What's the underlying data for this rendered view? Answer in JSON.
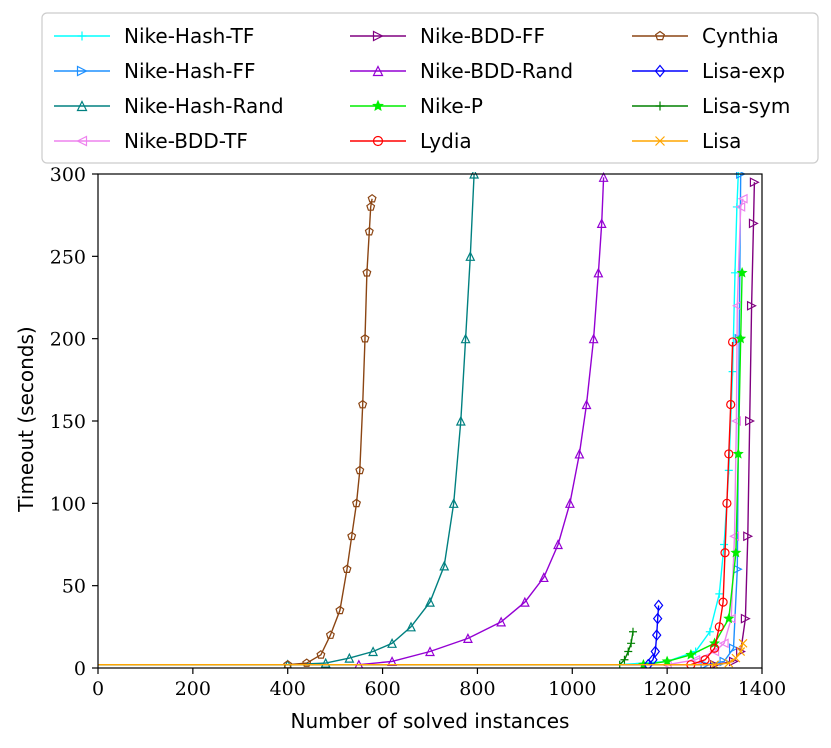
{
  "chart_data": {
    "type": "line",
    "title": "",
    "xlabel": "Number of solved instances",
    "ylabel": "Timeout (seconds)",
    "xlim": [
      0,
      1400
    ],
    "ylim": [
      0,
      300
    ],
    "xticks": [
      "0",
      "200",
      "400",
      "600",
      "800",
      "1000",
      "1200",
      "1400"
    ],
    "yticks": [
      "0",
      "50",
      "100",
      "150",
      "200",
      "250",
      "300"
    ],
    "grid": false,
    "legend_position": "top",
    "series": [
      {
        "name": "Nike-Hash-TF",
        "color": "#00ffff",
        "marker": "plus",
        "points": [
          [
            0,
            2
          ],
          [
            1100,
            2
          ],
          [
            1200,
            4
          ],
          [
            1260,
            10
          ],
          [
            1290,
            22
          ],
          [
            1310,
            45
          ],
          [
            1320,
            75
          ],
          [
            1330,
            120
          ],
          [
            1338,
            180
          ],
          [
            1343,
            240
          ],
          [
            1347,
            280
          ],
          [
            1350,
            300
          ]
        ]
      },
      {
        "name": "Nike-Hash-FF",
        "color": "#1e90ff",
        "marker": "tri-right",
        "points": [
          [
            0,
            2
          ],
          [
            1280,
            2
          ],
          [
            1320,
            4
          ],
          [
            1340,
            12
          ],
          [
            1348,
            60
          ],
          [
            1352,
            200
          ],
          [
            1355,
            300
          ]
        ]
      },
      {
        "name": "Nike-Hash-Rand",
        "color": "#008080",
        "marker": "tri-up",
        "points": [
          [
            0,
            2
          ],
          [
            400,
            2
          ],
          [
            480,
            3
          ],
          [
            530,
            6
          ],
          [
            580,
            10
          ],
          [
            620,
            15
          ],
          [
            660,
            25
          ],
          [
            700,
            40
          ],
          [
            730,
            62
          ],
          [
            750,
            100
          ],
          [
            765,
            150
          ],
          [
            775,
            200
          ],
          [
            785,
            250
          ],
          [
            793,
            300
          ]
        ]
      },
      {
        "name": "Nike-BDD-TF",
        "color": "#ee82ee",
        "marker": "tri-left",
        "points": [
          [
            0,
            2
          ],
          [
            1200,
            2
          ],
          [
            1260,
            5
          ],
          [
            1300,
            10
          ],
          [
            1320,
            15
          ],
          [
            1335,
            30
          ],
          [
            1342,
            80
          ],
          [
            1346,
            150
          ],
          [
            1348,
            220
          ],
          [
            1355,
            280
          ],
          [
            1360,
            285
          ]
        ]
      },
      {
        "name": "Nike-BDD-FF",
        "color": "#800080",
        "marker": "tri-right",
        "points": [
          [
            0,
            2
          ],
          [
            1300,
            2
          ],
          [
            1340,
            4
          ],
          [
            1355,
            10
          ],
          [
            1365,
            30
          ],
          [
            1370,
            80
          ],
          [
            1374,
            150
          ],
          [
            1378,
            220
          ],
          [
            1382,
            270
          ],
          [
            1384,
            295
          ]
        ]
      },
      {
        "name": "Nike-BDD-Rand",
        "color": "#9400d3",
        "marker": "tri-up",
        "points": [
          [
            0,
            2
          ],
          [
            550,
            2
          ],
          [
            620,
            4
          ],
          [
            700,
            10
          ],
          [
            780,
            18
          ],
          [
            850,
            28
          ],
          [
            900,
            40
          ],
          [
            940,
            55
          ],
          [
            970,
            75
          ],
          [
            995,
            100
          ],
          [
            1015,
            130
          ],
          [
            1030,
            160
          ],
          [
            1045,
            200
          ],
          [
            1055,
            240
          ],
          [
            1062,
            270
          ],
          [
            1066,
            298
          ]
        ]
      },
      {
        "name": "Nike-P",
        "color": "#00ee00",
        "marker": "star",
        "points": [
          [
            0,
            2
          ],
          [
            1150,
            2
          ],
          [
            1200,
            4
          ],
          [
            1250,
            8
          ],
          [
            1300,
            15
          ],
          [
            1330,
            30
          ],
          [
            1345,
            70
          ],
          [
            1350,
            130
          ],
          [
            1355,
            200
          ],
          [
            1358,
            240
          ]
        ]
      },
      {
        "name": "Lydia",
        "color": "#ff0000",
        "marker": "circle",
        "points": [
          [
            0,
            2
          ],
          [
            1250,
            2
          ],
          [
            1280,
            5
          ],
          [
            1300,
            12
          ],
          [
            1310,
            25
          ],
          [
            1318,
            40
          ],
          [
            1322,
            70
          ],
          [
            1326,
            100
          ],
          [
            1330,
            130
          ],
          [
            1334,
            160
          ],
          [
            1338,
            198
          ]
        ]
      },
      {
        "name": "Cynthia",
        "color": "#8b4513",
        "marker": "pentagon",
        "points": [
          [
            0,
            2
          ],
          [
            400,
            2
          ],
          [
            440,
            3
          ],
          [
            470,
            8
          ],
          [
            490,
            20
          ],
          [
            510,
            35
          ],
          [
            525,
            60
          ],
          [
            535,
            80
          ],
          [
            545,
            100
          ],
          [
            552,
            120
          ],
          [
            558,
            160
          ],
          [
            563,
            200
          ],
          [
            567,
            240
          ],
          [
            572,
            265
          ],
          [
            575,
            280
          ],
          [
            578,
            285
          ]
        ]
      },
      {
        "name": "Lisa-exp",
        "color": "#0000ff",
        "marker": "diamond",
        "points": [
          [
            0,
            2
          ],
          [
            1160,
            2
          ],
          [
            1170,
            5
          ],
          [
            1175,
            10
          ],
          [
            1178,
            20
          ],
          [
            1180,
            30
          ],
          [
            1182,
            38
          ]
        ]
      },
      {
        "name": "Lisa-sym",
        "color": "#008000",
        "marker": "plus",
        "points": [
          [
            0,
            2
          ],
          [
            1100,
            2
          ],
          [
            1110,
            5
          ],
          [
            1118,
            10
          ],
          [
            1124,
            15
          ],
          [
            1128,
            22
          ]
        ]
      },
      {
        "name": "Lisa",
        "color": "#ffa500",
        "marker": "x",
        "points": [
          [
            0,
            2
          ],
          [
            1300,
            2
          ],
          [
            1330,
            3
          ],
          [
            1345,
            6
          ],
          [
            1355,
            10
          ],
          [
            1360,
            15
          ]
        ]
      }
    ]
  }
}
